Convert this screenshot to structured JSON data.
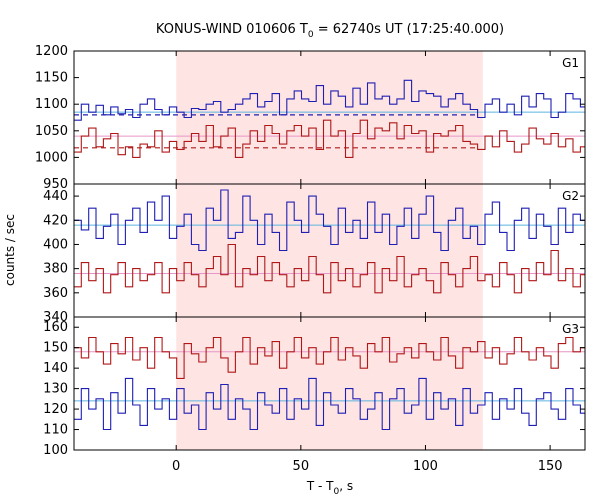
{
  "chart_data": {
    "type": "line",
    "title": "KONUS-WIND 010606 T",
    "title_sub": "0",
    "title_rest": " = 62740s UT (17:25:40.000)",
    "xlabel": "T - T",
    "xlabel_sub": "0",
    "xlabel_rest": ", s",
    "ylabel": "counts / sec",
    "xlim": [
      -41,
      164
    ],
    "x_ticks": [
      0,
      50,
      100,
      150
    ],
    "highlight_interval": [
      0,
      123
    ],
    "highlight_color": "#ffe4e4",
    "bin_start": -41,
    "bin_width": 2.944,
    "panels": [
      {
        "label": "G1",
        "ylim": [
          950,
          1200
        ],
        "y_ticks": [
          950,
          1000,
          1050,
          1100,
          1150,
          1200
        ],
        "series": [
          {
            "color": "#1f1fb4",
            "fit_color": "#5ab4e0",
            "fit_value": 1085,
            "fit_dashed_value": 1080,
            "values": [
              1070,
              1100,
              1085,
              1098,
              1080,
              1095,
              1082,
              1090,
              1075,
              1100,
              1110,
              1090,
              1080,
              1095,
              1085,
              1075,
              1092,
              1090,
              1100,
              1105,
              1085,
              1090,
              1100,
              1110,
              1120,
              1095,
              1105,
              1120,
              1080,
              1110,
              1125,
              1110,
              1105,
              1135,
              1100,
              1125,
              1115,
              1095,
              1130,
              1100,
              1140,
              1110,
              1115,
              1100,
              1110,
              1145,
              1105,
              1125,
              1120,
              1115,
              1095,
              1110,
              1120,
              1100,
              1090,
              1075,
              1100,
              1110,
              1085,
              1100,
              1080,
              1115,
              1095,
              1120,
              1110,
              1075,
              1085,
              1120,
              1110,
              1095
            ]
          },
          {
            "color": "#b01818",
            "fit_color": "#e696c8",
            "fit_value": 1040,
            "fit_dashed_value": 1018,
            "values": [
              1010,
              1040,
              1055,
              1020,
              1035,
              1045,
              1005,
              1020,
              1000,
              1025,
              1020,
              1050,
              1010,
              1030,
              1015,
              1030,
              1045,
              1030,
              1060,
              1020,
              1040,
              1055,
              1000,
              1025,
              1050,
              1030,
              1060,
              1045,
              1025,
              1050,
              1060,
              1040,
              1055,
              1015,
              1070,
              1040,
              1050,
              1000,
              1045,
              1070,
              1035,
              1055,
              1050,
              1065,
              1035,
              1060,
              1045,
              1050,
              1010,
              1045,
              1040,
              1050,
              1060,
              1030,
              1025,
              1015,
              1040,
              1020,
              1050,
              1030,
              1010,
              1025,
              1055,
              1035,
              1025,
              1045,
              1020,
              1035,
              1010,
              1020
            ]
          }
        ]
      },
      {
        "label": "G2",
        "ylim": [
          340,
          450
        ],
        "y_ticks": [
          340,
          360,
          380,
          400,
          420,
          440
        ],
        "series": [
          {
            "color": "#1f1fb4",
            "fit_color": "#5ab4e0",
            "fit_value": 416,
            "values": [
              420,
              412,
              430,
              405,
              415,
              425,
              400,
              420,
              430,
              410,
              435,
              420,
              440,
              405,
              415,
              425,
              400,
              395,
              430,
              420,
              445,
              405,
              410,
              440,
              420,
              400,
              425,
              410,
              395,
              435,
              420,
              410,
              440,
              425,
              415,
              400,
              430,
              410,
              420,
              405,
              435,
              410,
              425,
              400,
              415,
              430,
              405,
              425,
              440,
              410,
              395,
              420,
              430,
              405,
              415,
              400,
              425,
              435,
              410,
              395,
              420,
              430,
              405,
              425,
              415,
              400,
              430,
              410,
              425,
              420
            ]
          },
          {
            "color": "#b01818",
            "fit_color": "#e696c8",
            "fit_value": 376,
            "values": [
              365,
              385,
              370,
              380,
              360,
              375,
              385,
              365,
              380,
              370,
              375,
              385,
              360,
              380,
              370,
              385,
              375,
              365,
              380,
              390,
              375,
              400,
              365,
              380,
              375,
              390,
              370,
              385,
              375,
              365,
              380,
              370,
              390,
              375,
              360,
              385,
              370,
              380,
              365,
              375,
              385,
              360,
              380,
              370,
              390,
              365,
              375,
              380,
              370,
              360,
              385,
              375,
              365,
              380,
              390,
              370,
              375,
              365,
              385,
              375,
              360,
              380,
              370,
              385,
              375,
              395,
              370,
              380,
              365,
              375
            ]
          }
        ]
      },
      {
        "label": "G3",
        "ylim": [
          100,
          165
        ],
        "y_ticks": [
          100,
          110,
          120,
          130,
          140,
          150,
          160
        ],
        "series": [
          {
            "color": "#b01818",
            "fit_color": "#e696c8",
            "fit_value": 148,
            "values": [
              150,
              145,
              155,
              148,
              142,
              152,
              147,
              155,
              144,
              150,
              140,
              155,
              148,
              145,
              135,
              152,
              147,
              143,
              150,
              155,
              145,
              138,
              148,
              155,
              142,
              150,
              146,
              153,
              140,
              148,
              155,
              145,
              150,
              142,
              148,
              155,
              144,
              150,
              146,
              140,
              152,
              148,
              155,
              143,
              147,
              150,
              145,
              152,
              148,
              144,
              155,
              146,
              140,
              150,
              148,
              153,
              145,
              150,
              142,
              147,
              155,
              148,
              144,
              150,
              146,
              140,
              152,
              155,
              148,
              150
            ]
          },
          {
            "color": "#1f1fb4",
            "fit_color": "#5ab4e0",
            "fit_value": 124,
            "values": [
              115,
              130,
              120,
              125,
              110,
              128,
              118,
              135,
              122,
              112,
              130,
              120,
              125,
              115,
              130,
              118,
              122,
              110,
              128,
              120,
              132,
              115,
              125,
              120,
              110,
              128,
              122,
              118,
              130,
              115,
              125,
              120,
              135,
              112,
              128,
              122,
              118,
              130,
              125,
              115,
              120,
              128,
              110,
              125,
              130,
              118,
              122,
              135,
              115,
              128,
              120,
              125,
              112,
              130,
              118,
              122,
              128,
              115,
              125,
              120,
              130,
              118,
              112,
              125,
              128,
              120,
              115,
              130,
              122,
              118
            ]
          }
        ]
      }
    ]
  }
}
